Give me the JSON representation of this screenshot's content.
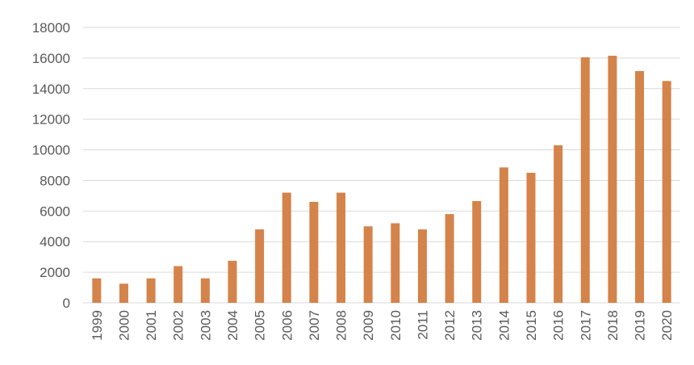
{
  "chart_data": {
    "type": "bar",
    "title": "",
    "xlabel": "",
    "ylabel": "",
    "categories": [
      "1999",
      "2000",
      "2001",
      "2002",
      "2003",
      "2004",
      "2005",
      "2006",
      "2007",
      "2008",
      "2009",
      "2010",
      "2011",
      "2012",
      "2013",
      "2014",
      "2015",
      "2016",
      "2017",
      "2018",
      "2019",
      "2020"
    ],
    "values": [
      1600,
      1250,
      1600,
      2400,
      1600,
      2750,
      4800,
      7200,
      6600,
      7200,
      5000,
      5200,
      4800,
      5800,
      6650,
      8850,
      8500,
      10300,
      16050,
      16150,
      15150,
      14500
    ],
    "ylim": [
      0,
      18000
    ],
    "yticks": [
      "0",
      "2000",
      "4000",
      "6000",
      "8000",
      "10000",
      "12000",
      "14000",
      "16000",
      "18000"
    ],
    "grid": true,
    "legend": "none",
    "bar_color": "#d4834a"
  }
}
